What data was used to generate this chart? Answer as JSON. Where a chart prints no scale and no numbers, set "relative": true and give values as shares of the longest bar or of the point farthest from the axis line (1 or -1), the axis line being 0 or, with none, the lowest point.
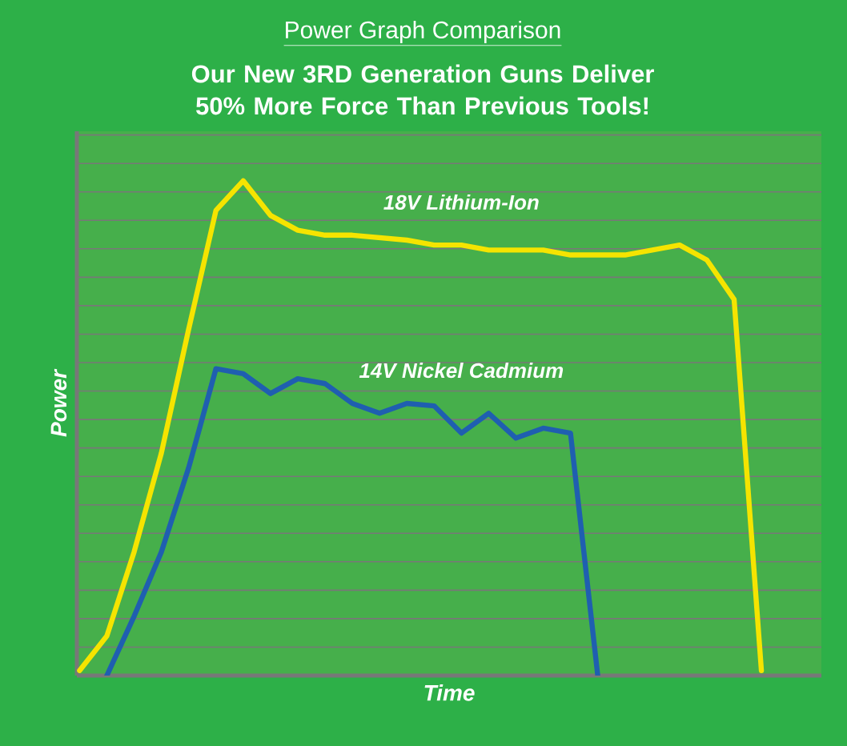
{
  "chart_data": {
    "type": "line",
    "title": "Power Graph Comparison",
    "subtitle": "Our New 3RD Generation Guns Deliver 50% More Force Than Previous Tools!",
    "xlabel": "Time",
    "ylabel": "Power",
    "relative": true,
    "grid": "y",
    "legend": false,
    "categories": [
      null,
      null,
      null,
      null,
      null,
      null,
      null,
      null,
      null,
      null,
      null,
      null,
      null,
      null,
      null,
      null,
      null,
      null,
      null,
      null,
      null,
      null,
      null,
      null,
      null,
      null,
      null,
      null
    ],
    "series": [
      {
        "name": "18V Lithium-Ion",
        "color": "#f5e400",
        "values": [
          0.01,
          0.08,
          0.25,
          0.45,
          0.7,
          0.94,
          1.0,
          0.93,
          0.9,
          0.89,
          0.89,
          0.885,
          0.88,
          0.87,
          0.87,
          0.86,
          0.86,
          0.86,
          0.85,
          0.85,
          0.85,
          0.86,
          0.87,
          0.84,
          0.76,
          0.01,
          null,
          null
        ]
      },
      {
        "name": "14V Nickel Cadmium",
        "color": "#1f5fb0",
        "values": [
          null,
          0.0,
          0.12,
          0.25,
          0.42,
          0.62,
          0.61,
          0.57,
          0.6,
          0.59,
          0.55,
          0.53,
          0.55,
          0.545,
          0.49,
          0.53,
          0.48,
          0.5,
          0.49,
          0.0,
          null,
          null,
          null,
          null,
          null,
          null,
          null,
          null
        ]
      }
    ]
  }
}
